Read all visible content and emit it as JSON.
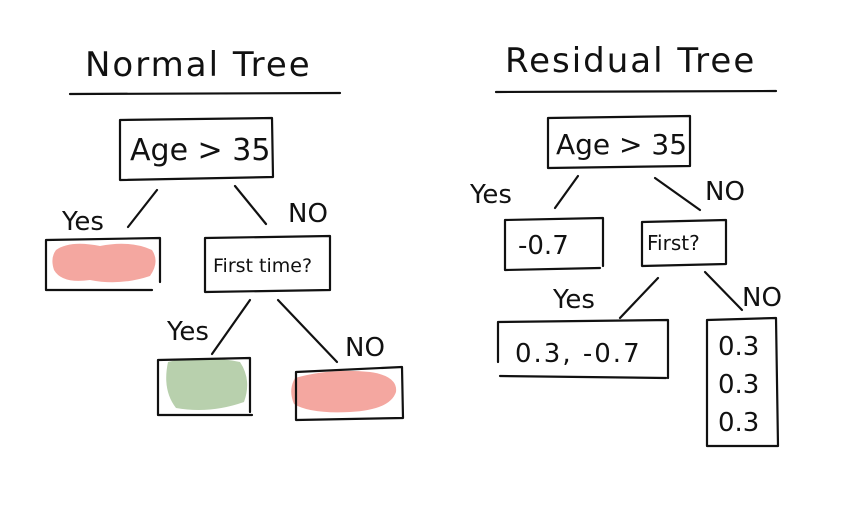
{
  "colors": {
    "ink": "#111111",
    "leaf_red": "#f4a7a0",
    "leaf_green": "#b8d0ad"
  },
  "normal_tree": {
    "title": "Normal Tree",
    "root": "Age > 35",
    "left_edge": "Yes",
    "right_edge": "NO",
    "inner_node": "First time?",
    "inner_left_edge": "Yes",
    "inner_right_edge": "NO"
  },
  "residual_tree": {
    "title": "Residual Tree",
    "root": "Age > 35",
    "left_edge": "Yes",
    "right_edge": "NO",
    "left_leaf": "-0.7",
    "inner_node": "First?",
    "inner_left_edge": "Yes",
    "inner_right_edge": "NO",
    "yes_leaf": "0.3, -0.7",
    "no_leaf_values": [
      "0.3",
      "0.3",
      "0.3"
    ]
  }
}
